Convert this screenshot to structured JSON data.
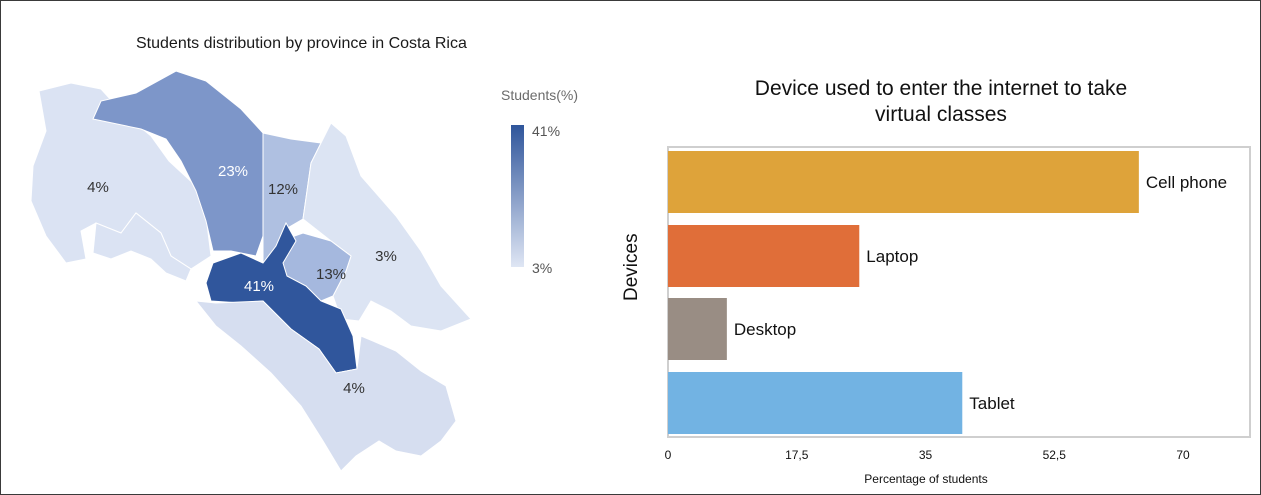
{
  "map": {
    "title": "Students distribution by province in Costa Rica",
    "legend": {
      "title": "Students(%)",
      "max_label": "41%",
      "min_label": "3%",
      "color_max": "#2f559b",
      "color_min": "#dfe6f4"
    },
    "provinces": [
      {
        "label": "4%",
        "value": 4,
        "color": "#dbe3f3"
      },
      {
        "label": "23%",
        "value": 23,
        "color": "#7d96c9"
      },
      {
        "label": "12%",
        "value": 12,
        "color": "#afc0e1"
      },
      {
        "label": "3%",
        "value": 3,
        "color": "#dce4f3"
      },
      {
        "label": "13%",
        "value": 13,
        "color": "#a5b8de"
      },
      {
        "label": "41%",
        "value": 41,
        "color": "#30569c"
      },
      {
        "label": "4%",
        "value": 4,
        "color": "#d6def0"
      }
    ]
  },
  "chart_data": {
    "type": "bar",
    "orientation": "horizontal",
    "title": "Device used to enter the internet to take virtual classes",
    "title_lines": [
      "Device used to enter the internet to take",
      "virtual classes"
    ],
    "xlabel": "Percentage of students",
    "ylabel": "Devices",
    "categories": [
      "Cell phone",
      "Laptop",
      "Desktop",
      "Tablet"
    ],
    "values": [
      64,
      26,
      8,
      40
    ],
    "colors": [
      "#dea33a",
      "#e06e39",
      "#998d84",
      "#72b3e3"
    ],
    "xlim": [
      0,
      70
    ],
    "xticks": [
      "0",
      "17,5",
      "35",
      "52,5",
      "70"
    ],
    "xtick_values": [
      0,
      17.5,
      35,
      52.5,
      70
    ],
    "grid": false
  }
}
